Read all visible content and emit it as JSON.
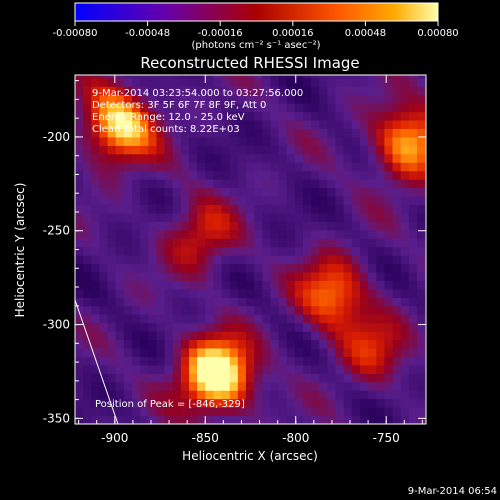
{
  "chart_data": {
    "type": "heatmap",
    "title": "Reconstructed RHESSI Image",
    "xlabel": "Heliocentric X (arcsec)",
    "ylabel": "Heliocentric Y (arcsec)",
    "xlim": [
      -922,
      -728
    ],
    "ylim": [
      -353,
      -167
    ],
    "x_ticks": [
      -900,
      -850,
      -800,
      -750
    ],
    "x_tick_labels": [
      "-900",
      "-850",
      "-800",
      "-750"
    ],
    "y_ticks": [
      -200,
      -250,
      -300,
      -350
    ],
    "y_tick_labels": [
      "-200",
      "-250",
      "-300",
      "-350"
    ],
    "colorbar": {
      "range": [
        -0.0008,
        0.0008
      ],
      "ticks": [
        -0.0008,
        -0.00048,
        -0.00016,
        0.00016,
        0.00048,
        0.0008
      ],
      "tick_labels": [
        "-0.00080",
        "-0.00048",
        "-0.00016",
        "0.00016",
        "0.00048",
        "0.00080"
      ],
      "unit_label": "(photons cm⁻² s⁻¹ asec⁻²)",
      "colors": [
        "#0000ff",
        "#6600aa",
        "#aa0000",
        "#ff3300",
        "#ff9900",
        "#ffff88"
      ]
    },
    "annotations": [
      "9-Mar-2014 03:23:54.000 to 03:27:56.000",
      "Detectors: 3F 5F 6F 7F 8F 9F, Att 0",
      "Energy Range: 12.0 - 25.0 keV",
      "Clean     Total counts: 8.22E+03"
    ],
    "peak_label": "Position of Peak = [-846,-329]",
    "peak_position": [
      -846,
      -329
    ],
    "sources": [
      {
        "x": -846,
        "y": -329,
        "strength": 1.0
      },
      {
        "x": -900,
        "y": -196,
        "strength": 0.8
      },
      {
        "x": -740,
        "y": -205,
        "strength": 0.7
      },
      {
        "x": -782,
        "y": -286,
        "strength": 0.55
      },
      {
        "x": -855,
        "y": -255,
        "strength": 0.4
      },
      {
        "x": -760,
        "y": -315,
        "strength": 0.35
      }
    ],
    "grid": false
  },
  "footer_date": "9-Mar-2014 06:54"
}
